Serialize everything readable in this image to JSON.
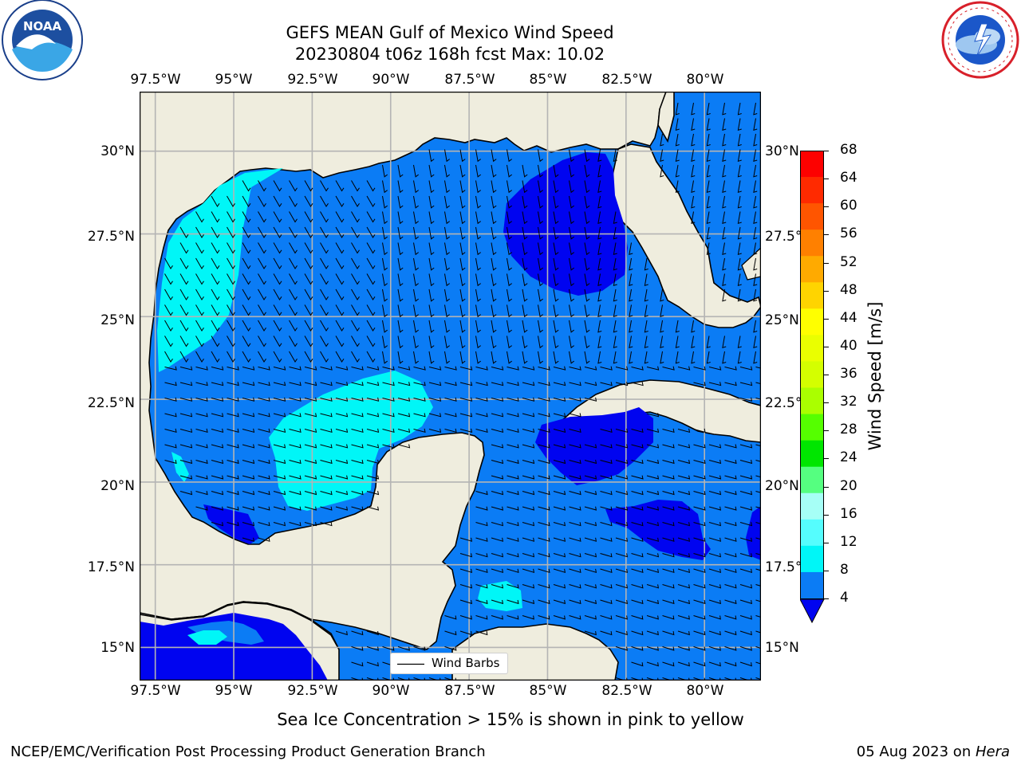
{
  "header": {
    "title_line1": "GEFS MEAN Gulf of Mexico Wind Speed",
    "title_line2": "20230804 t06z 168h fcst   Max: 10.02"
  },
  "logos": {
    "left": {
      "name": "noaa-logo",
      "text": "NOAA",
      "ring_text": "NATIONAL OCEANIC AND ATMOSPHERIC ADMINISTRATION · U.S. DEPARTMENT OF COMMERCE"
    },
    "right": {
      "name": "nws-logo",
      "ring_text": "NATIONAL WEATHER SERVICE"
    }
  },
  "map": {
    "lon_labels": [
      "97.5°W",
      "95°W",
      "92.5°W",
      "90°W",
      "87.5°W",
      "85°W",
      "82.5°W",
      "80°W"
    ],
    "lat_labels": [
      "30°N",
      "27.5°N",
      "25°N",
      "22.5°N",
      "20°N",
      "17.5°N",
      "15°N"
    ],
    "extent": {
      "lon_min": -98.0,
      "lon_max": -78.2,
      "lat_min": 14.0,
      "lat_max": 31.8
    },
    "legend_label": "Wind Barbs",
    "colors": {
      "land": "#efedde",
      "ocean_4_8": "#0b7cf5",
      "ocean_8_12": "#00f6f7",
      "ocean_below_4": "#0004f0",
      "grid": "#b4b4b4"
    }
  },
  "colorbar": {
    "label": "Wind Speed [m/s]",
    "ticks": [
      "68",
      "64",
      "60",
      "56",
      "52",
      "48",
      "44",
      "40",
      "36",
      "32",
      "28",
      "24",
      "20",
      "16",
      "12",
      "8",
      "4"
    ],
    "colors": [
      "#fd0100",
      "#ff2a00",
      "#ff5500",
      "#ff8000",
      "#ffaa00",
      "#ffd400",
      "#ffff00",
      "#eaff00",
      "#d4ff00",
      "#aaff00",
      "#55ff00",
      "#00e600",
      "#55ff80",
      "#a6fff6",
      "#55fdfe",
      "#00f6f7",
      "#0b7cf5"
    ],
    "extend_color": "#0004f0"
  },
  "footer": {
    "note": "Sea Ice Concentration > 15% is shown in pink to yellow",
    "left": "NCEP/EMC/Verification Post Processing Product Generation Branch",
    "right_prefix": "05 Aug 2023 on ",
    "right_host": "Hera"
  }
}
